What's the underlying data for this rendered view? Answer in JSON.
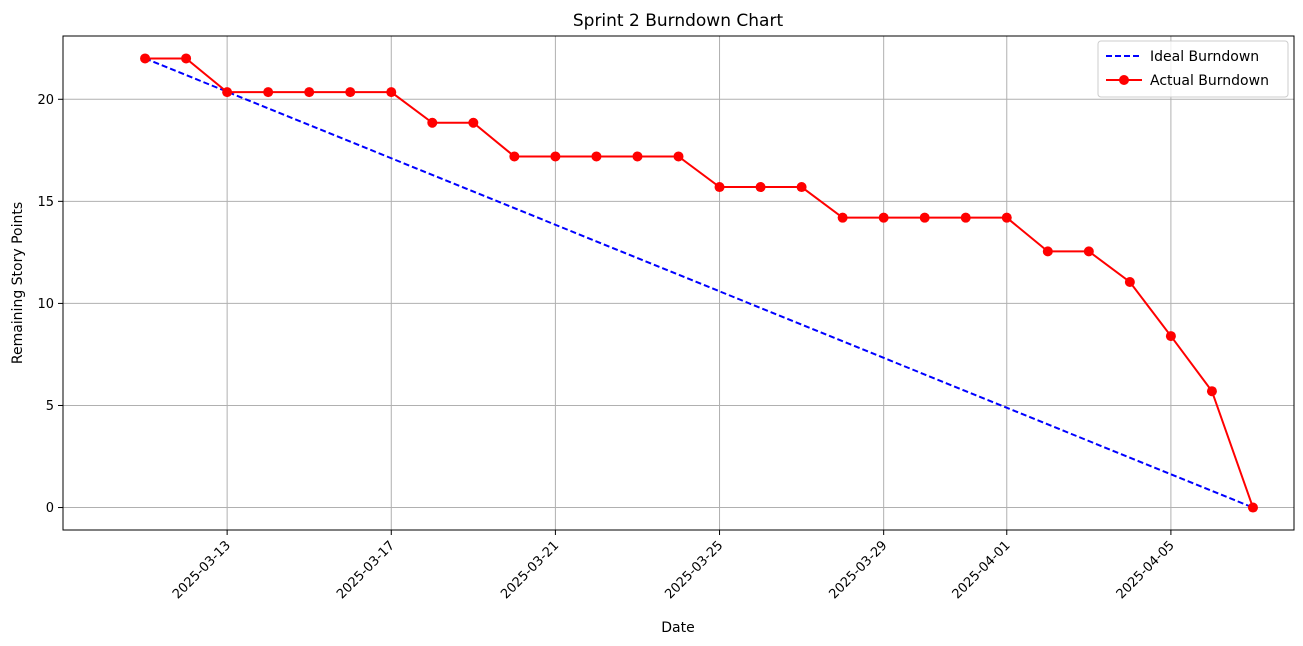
{
  "chart_data": {
    "type": "line",
    "title": "Sprint 2 Burndown Chart",
    "xlabel": "Date",
    "ylabel": "Remaining Story Points",
    "x_axis_type": "date",
    "xlim": [
      "2025-03-09",
      "2025-04-08"
    ],
    "ylim": [
      -1.1,
      23.1
    ],
    "x_ticks": [
      "2025-03-13",
      "2025-03-17",
      "2025-03-21",
      "2025-03-25",
      "2025-03-29",
      "2025-04-01",
      "2025-04-05"
    ],
    "y_ticks": [
      0,
      5,
      10,
      15,
      20
    ],
    "grid": true,
    "legend_position": "top-right",
    "series": [
      {
        "name": "Ideal Burndown",
        "style": "dashed",
        "color": "#0000ff",
        "marker": "none",
        "points": [
          {
            "x": "2025-03-11",
            "y": 22
          },
          {
            "x": "2025-04-07",
            "y": 0
          }
        ]
      },
      {
        "name": "Actual Burndown",
        "style": "solid",
        "color": "#ff0000",
        "marker": "circle",
        "points": [
          {
            "x": "2025-03-11",
            "y": 22.0
          },
          {
            "x": "2025-03-12",
            "y": 22.0
          },
          {
            "x": "2025-03-13",
            "y": 20.35
          },
          {
            "x": "2025-03-14",
            "y": 20.35
          },
          {
            "x": "2025-03-15",
            "y": 20.35
          },
          {
            "x": "2025-03-16",
            "y": 20.35
          },
          {
            "x": "2025-03-17",
            "y": 20.35
          },
          {
            "x": "2025-03-18",
            "y": 18.85
          },
          {
            "x": "2025-03-19",
            "y": 18.85
          },
          {
            "x": "2025-03-20",
            "y": 17.2
          },
          {
            "x": "2025-03-21",
            "y": 17.2
          },
          {
            "x": "2025-03-22",
            "y": 17.2
          },
          {
            "x": "2025-03-23",
            "y": 17.2
          },
          {
            "x": "2025-03-24",
            "y": 17.2
          },
          {
            "x": "2025-03-25",
            "y": 15.7
          },
          {
            "x": "2025-03-26",
            "y": 15.7
          },
          {
            "x": "2025-03-27",
            "y": 15.7
          },
          {
            "x": "2025-03-28",
            "y": 14.2
          },
          {
            "x": "2025-03-29",
            "y": 14.2
          },
          {
            "x": "2025-03-30",
            "y": 14.2
          },
          {
            "x": "2025-03-31",
            "y": 14.2
          },
          {
            "x": "2025-04-01",
            "y": 14.2
          },
          {
            "x": "2025-04-02",
            "y": 12.55
          },
          {
            "x": "2025-04-03",
            "y": 12.55
          },
          {
            "x": "2025-04-04",
            "y": 11.05
          },
          {
            "x": "2025-04-05",
            "y": 8.4
          },
          {
            "x": "2025-04-06",
            "y": 5.7
          },
          {
            "x": "2025-04-07",
            "y": 0.0
          }
        ]
      }
    ]
  }
}
